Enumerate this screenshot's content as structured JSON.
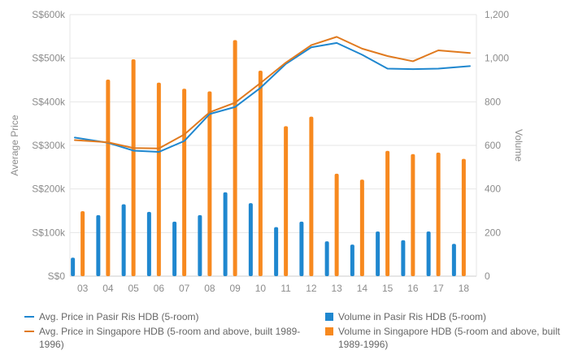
{
  "chart_data": {
    "type": "bar",
    "categories": [
      "03",
      "04",
      "05",
      "06",
      "07",
      "08",
      "09",
      "10",
      "11",
      "12",
      "13",
      "14",
      "15",
      "16",
      "17",
      "18"
    ],
    "left_axis": {
      "title": "Average Price",
      "ticks": [
        "S$0",
        "S$100k",
        "S$200k",
        "S$300k",
        "S$400k",
        "S$500k",
        "S$600k"
      ],
      "ylim": [
        0,
        600000
      ]
    },
    "right_axis": {
      "title": "Volume",
      "ticks": [
        "0",
        "200",
        "400",
        "600",
        "800",
        "1,000",
        "1,200"
      ],
      "ylim": [
        0,
        1200
      ]
    },
    "series": [
      {
        "name": "Volume in Pasir Ris HDB (5-room)",
        "type": "bar",
        "axis": "right",
        "color": "#1f87cf",
        "values": [
          85,
          280,
          330,
          295,
          250,
          280,
          385,
          335,
          225,
          250,
          160,
          145,
          205,
          165,
          205,
          148
        ]
      },
      {
        "name": "Volume in Singapore HDB (5-room and above, built 1989-1996)",
        "type": "bar",
        "axis": "right",
        "color": "#f7891f",
        "values": [
          298,
          902,
          995,
          888,
          860,
          848,
          1083,
          943,
          688,
          732,
          470,
          443,
          575,
          560,
          567,
          538
        ]
      },
      {
        "name": "Avg. Price in Pasir Ris HDB (5-room)",
        "type": "line",
        "axis": "left",
        "color": "#1f87cf",
        "values": [
          318000,
          306000,
          288000,
          285000,
          310000,
          372000,
          388000,
          432000,
          487000,
          525000,
          535000,
          508000,
          476000,
          475000,
          476000,
          482000
        ]
      },
      {
        "name": "Avg. Price in Singapore HDB (5-room and above, built 1989-1996)",
        "type": "line",
        "axis": "left",
        "color": "#e07a1f",
        "values": [
          312000,
          307000,
          294000,
          293000,
          325000,
          376000,
          398000,
          443000,
          490000,
          530000,
          549000,
          522000,
          505000,
          493000,
          518000,
          512000
        ]
      }
    ],
    "grid": true,
    "legend_position": "bottom"
  },
  "legend": [
    {
      "label": "Avg. Price in Pasir Ris HDB (5-room)",
      "color": "#1f87cf",
      "kind": "line"
    },
    {
      "label": "Volume in Pasir Ris HDB (5-room)",
      "color": "#1f87cf",
      "kind": "square"
    },
    {
      "label": "Avg. Price in Singapore HDB (5-room and above, built 1989-1996)",
      "color": "#e07a1f",
      "kind": "line"
    },
    {
      "label": "Volume in Singapore HDB (5-room and above, built 1989-1996)",
      "color": "#f7891f",
      "kind": "square"
    }
  ]
}
